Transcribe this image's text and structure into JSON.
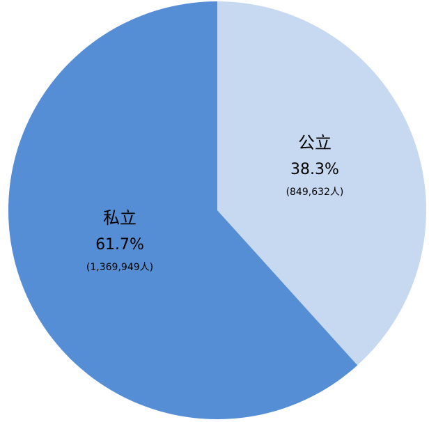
{
  "chart_data": {
    "type": "pie",
    "categories": [
      "公立",
      "私立"
    ],
    "values": [
      38.3,
      61.7
    ],
    "value_labels": [
      "38.3%",
      "61.7%"
    ],
    "counts": [
      849632,
      1369949
    ],
    "count_labels": [
      "(849,632人)",
      "(1,369,949人)"
    ],
    "colors": [
      "#c6d9f1",
      "#558ed5"
    ]
  }
}
